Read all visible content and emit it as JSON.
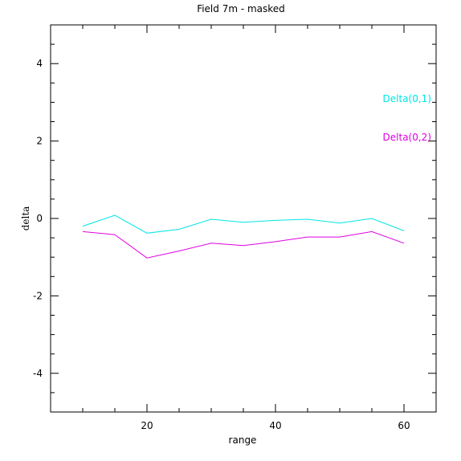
{
  "chart_data": {
    "type": "line",
    "title": "Field 7m - masked",
    "xlabel": "range",
    "ylabel": "delta",
    "xlim": [
      5,
      65
    ],
    "ylim": [
      -5,
      5
    ],
    "x_major_ticks": [
      20,
      40,
      60
    ],
    "x_tick_labels": [
      "20",
      "40",
      "60"
    ],
    "x_minor_step": 5,
    "y_major_ticks": [
      -4,
      -2,
      0,
      2,
      4
    ],
    "y_tick_labels": [
      "-4",
      "-2",
      "0",
      "2",
      "4"
    ],
    "y_minor_step": 0.5,
    "grid": false,
    "legend_placement": "right",
    "x": [
      10,
      15,
      20,
      25,
      30,
      35,
      40,
      45,
      50,
      55,
      60
    ],
    "series": [
      {
        "name": "Delta(0,1)",
        "color": "#00e5e5",
        "values": [
          -0.2,
          0.08,
          -0.38,
          -0.28,
          -0.02,
          -0.1,
          -0.05,
          -0.02,
          -0.12,
          0.0,
          -0.32
        ]
      },
      {
        "name": "Delta(0,2)",
        "color": "#e000e0",
        "values": [
          -0.34,
          -0.42,
          -1.02,
          -0.84,
          -0.64,
          -0.7,
          -0.6,
          -0.48,
          -0.48,
          -0.34,
          -0.64
        ]
      }
    ]
  }
}
